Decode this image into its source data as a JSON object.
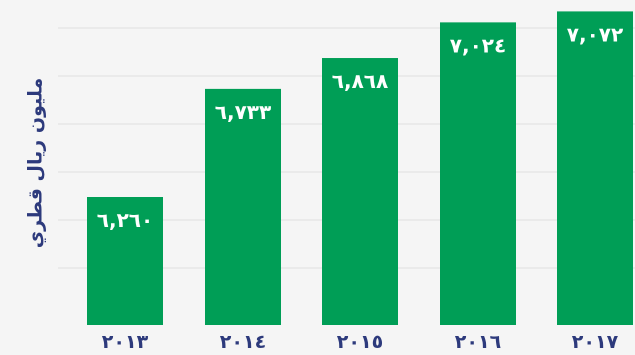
{
  "chart_data": {
    "type": "bar",
    "categories": [
      "٢٠١٣",
      "٢٠١٤",
      "٢٠١٥",
      "٢٠١٦",
      "٢٠١٧"
    ],
    "values": [
      6260,
      6733,
      6868,
      7024,
      7072
    ],
    "value_labels": [
      "٦,٢٦٠",
      "٦,٧٣٣",
      "٦,٨٦٨",
      "٧,٠٢٤",
      "٧,٠٧٢"
    ],
    "title": "",
    "xlabel": "",
    "ylabel": "مليون ريال قطري",
    "ylim": [
      5700,
      7100
    ],
    "grid": true,
    "legend": "none",
    "colors": {
      "bar": "#009e56",
      "value_text": "#ffffff",
      "tick_text": "#2d3a7c",
      "ylabel_text": "#2d3a7c",
      "grid": "#dedede",
      "background": "#f5f5f5"
    }
  }
}
